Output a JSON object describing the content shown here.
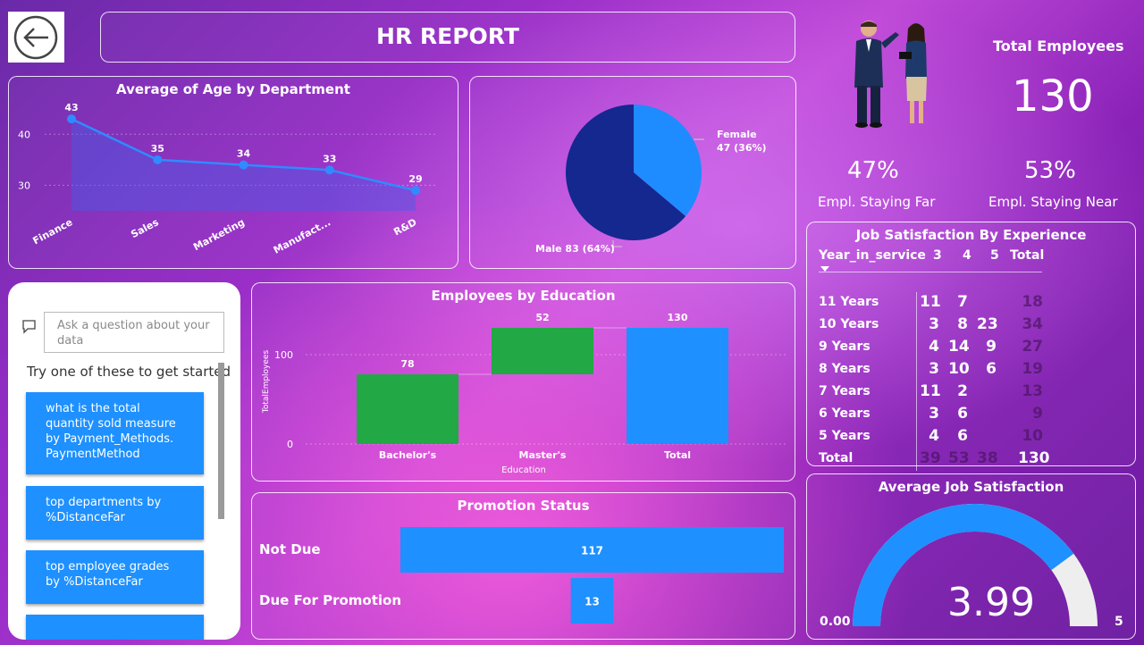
{
  "header": {
    "title": "HR REPORT",
    "back_icon": "back-arrow-icon"
  },
  "age_chart": {
    "title": "Average of Age by Department"
  },
  "gender": {
    "female_label": "Female",
    "female_value": "47 (36%)",
    "male_label": "Male 83 (64%)"
  },
  "kpi": {
    "total_label": "Total Employees",
    "total_value": "130",
    "far_pct": "47%",
    "far_label": "Empl. Staying Far",
    "near_pct": "53%",
    "near_label": "Empl. Staying Near"
  },
  "qna": {
    "placeholder": "Ask a question about your data",
    "hint": "Try one of these to get started",
    "suggestions": [
      "what is the total quantity sold measure by Payment_Methods. PaymentMethod",
      "top departments by %DistanceFar",
      "top employee grades by %DistanceFar"
    ]
  },
  "education": {
    "title": "Employees by Education",
    "ylabel": "TotalEmployees",
    "xlabel": "Education"
  },
  "promotion": {
    "title": "Promotion Status",
    "rows": [
      {
        "label": "Not Due",
        "value": "117"
      },
      {
        "label": "Due For Promotion",
        "value": "13"
      }
    ]
  },
  "job_table": {
    "title": "Job Satisfaction By Experience",
    "headers": [
      "Year_in_service",
      "3",
      "4",
      "5",
      "Total"
    ],
    "rows": [
      {
        "label": "11 Years",
        "c3": "11",
        "c4": "7",
        "c5": "",
        "total": "18"
      },
      {
        "label": "10 Years",
        "c3": "3",
        "c4": "8",
        "c5": "23",
        "total": "34"
      },
      {
        "label": "9 Years",
        "c3": "4",
        "c4": "14",
        "c5": "9",
        "total": "27"
      },
      {
        "label": "8 Years",
        "c3": "3",
        "c4": "10",
        "c5": "6",
        "total": "19"
      },
      {
        "label": "7 Years",
        "c3": "11",
        "c4": "2",
        "c5": "",
        "total": "13"
      },
      {
        "label": "6 Years",
        "c3": "3",
        "c4": "6",
        "c5": "",
        "total": "9"
      },
      {
        "label": "5 Years",
        "c3": "4",
        "c4": "6",
        "c5": "",
        "total": "10"
      },
      {
        "label": "Total",
        "c3": "39",
        "c4": "53",
        "c5": "38",
        "total": "130"
      }
    ]
  },
  "gauge": {
    "title": "Average Job Satisfaction",
    "value": "3.99",
    "min": "0.00",
    "max": "5",
    "fraction": 0.798
  },
  "colors": {
    "accent": "#1e90ff",
    "green": "#22a844",
    "navy": "#14288f"
  },
  "chart_data": [
    {
      "type": "area",
      "title": "Average of Age by Department",
      "categories": [
        "Finance",
        "Sales",
        "Marketing",
        "Manufact...",
        "R&D"
      ],
      "values": [
        43,
        35,
        34,
        33,
        29
      ],
      "yticks": [
        30,
        40
      ],
      "ylim": [
        25,
        46
      ]
    },
    {
      "type": "pie",
      "slices": [
        {
          "label": "Female",
          "value": 47,
          "percent": 36
        },
        {
          "label": "Male",
          "value": 83,
          "percent": 64
        }
      ]
    },
    {
      "type": "bar",
      "title": "Employees by Education",
      "subtype": "waterfall",
      "categories": [
        "Bachelor's",
        "Master's",
        "Total"
      ],
      "values": [
        78,
        52,
        130
      ],
      "yticks": [
        0,
        100
      ],
      "ylim": [
        0,
        140
      ],
      "ylabel": "TotalEmployees",
      "xlabel": "Education"
    },
    {
      "type": "bar",
      "title": "Promotion Status",
      "orientation": "horizontal",
      "categories": [
        "Not Due",
        "Due For Promotion"
      ],
      "values": [
        117,
        13
      ]
    }
  ]
}
